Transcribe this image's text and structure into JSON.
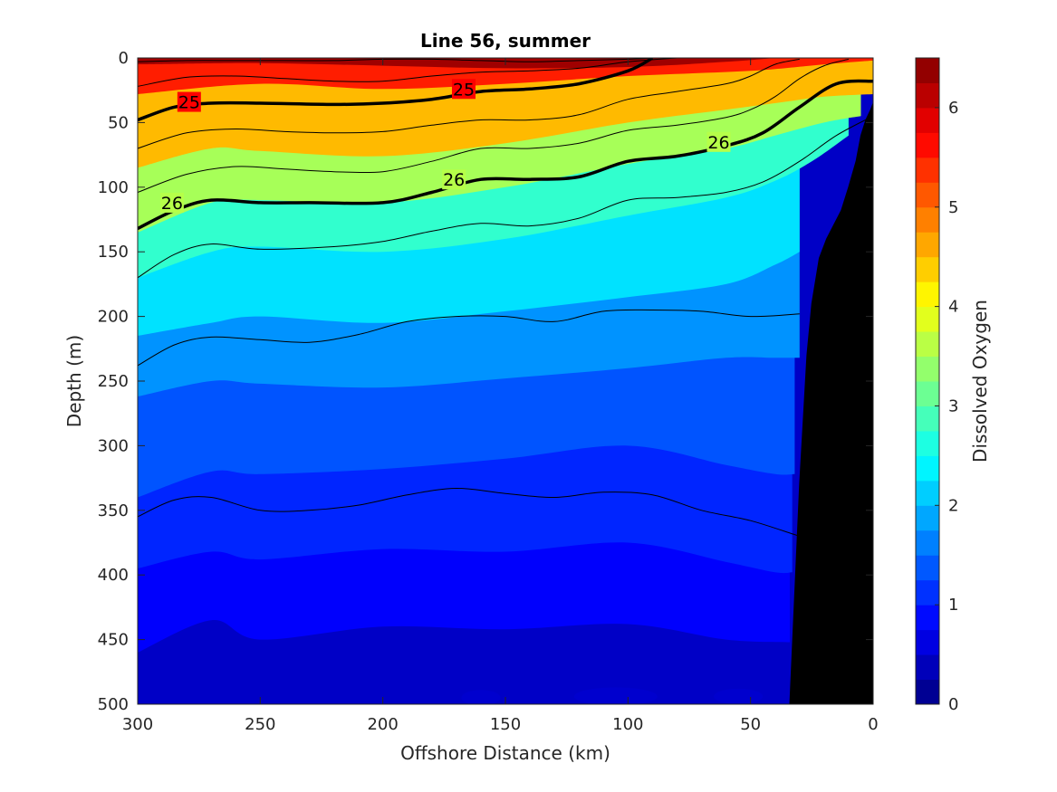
{
  "chart_data": {
    "type": "heatmap",
    "title": "Line 56, summer",
    "xlabel": "Offshore Distance (km)",
    "ylabel": "Depth (m)",
    "colorbar_label": "Dissolved Oxygen",
    "xlim": [
      300,
      0
    ],
    "ylim": [
      0,
      500
    ],
    "x_reversed": true,
    "y_reversed": true,
    "x_ticks": [
      "300",
      "250",
      "200",
      "150",
      "100",
      "50",
      "0"
    ],
    "y_ticks": [
      "0",
      "50",
      "100",
      "150",
      "200",
      "250",
      "300",
      "350",
      "400",
      "450",
      "500"
    ],
    "colorbar_range": [
      0,
      6.5
    ],
    "colorbar_ticks": [
      "0",
      "1",
      "2",
      "3",
      "4",
      "5",
      "6"
    ],
    "colormap": "jet",
    "color_levels": 26,
    "oxygen_isolines": [
      {
        "value": 6.0,
        "points": [
          [
            300,
            5
          ],
          [
            250,
            4
          ],
          [
            200,
            6
          ],
          [
            150,
            8
          ],
          [
            100,
            7
          ],
          [
            60,
            3
          ],
          [
            40,
            0
          ]
        ]
      },
      {
        "value": 5.0,
        "points": [
          [
            300,
            28
          ],
          [
            250,
            20
          ],
          [
            200,
            24
          ],
          [
            150,
            20
          ],
          [
            100,
            14
          ],
          [
            50,
            10
          ],
          [
            20,
            5
          ],
          [
            0,
            2
          ]
        ]
      },
      {
        "value": 4.0,
        "points": [
          [
            300,
            85
          ],
          [
            270,
            70
          ],
          [
            250,
            72
          ],
          [
            200,
            76
          ],
          [
            150,
            66
          ],
          [
            100,
            50
          ],
          [
            60,
            40
          ],
          [
            40,
            35
          ],
          [
            20,
            30
          ],
          [
            0,
            28
          ]
        ]
      },
      {
        "value": 3.0,
        "points": [
          [
            300,
            135
          ],
          [
            270,
            112
          ],
          [
            250,
            110
          ],
          [
            200,
            112
          ],
          [
            150,
            100
          ],
          [
            100,
            82
          ],
          [
            60,
            70
          ],
          [
            40,
            60
          ],
          [
            20,
            50
          ],
          [
            5,
            45
          ]
        ]
      },
      {
        "value": 2.5,
        "points": [
          [
            300,
            170
          ],
          [
            270,
            150
          ],
          [
            250,
            146
          ],
          [
            200,
            150
          ],
          [
            150,
            140
          ],
          [
            100,
            122
          ],
          [
            60,
            108
          ],
          [
            40,
            95
          ],
          [
            25,
            80
          ],
          [
            10,
            60
          ]
        ]
      },
      {
        "value": 2.0,
        "points": [
          [
            300,
            215
          ],
          [
            270,
            205
          ],
          [
            250,
            200
          ],
          [
            200,
            205
          ],
          [
            150,
            196
          ],
          [
            100,
            185
          ],
          [
            60,
            175
          ],
          [
            40,
            160
          ],
          [
            30,
            150
          ]
        ]
      },
      {
        "value": 1.5,
        "points": [
          [
            300,
            262
          ],
          [
            270,
            250
          ],
          [
            250,
            252
          ],
          [
            200,
            255
          ],
          [
            150,
            248
          ],
          [
            100,
            240
          ],
          [
            60,
            232
          ],
          [
            40,
            232
          ],
          [
            30,
            232
          ]
        ]
      },
      {
        "value": 1.2,
        "points": [
          [
            300,
            340
          ],
          [
            270,
            320
          ],
          [
            250,
            322
          ],
          [
            200,
            318
          ],
          [
            150,
            310
          ],
          [
            100,
            300
          ],
          [
            60,
            315
          ],
          [
            40,
            322
          ],
          [
            32,
            322
          ]
        ]
      },
      {
        "value": 0.9,
        "points": [
          [
            300,
            395
          ],
          [
            270,
            382
          ],
          [
            250,
            388
          ],
          [
            200,
            380
          ],
          [
            150,
            382
          ],
          [
            100,
            375
          ],
          [
            60,
            390
          ],
          [
            40,
            398
          ],
          [
            33,
            398
          ]
        ]
      },
      {
        "value": 0.7,
        "points": [
          [
            300,
            460
          ],
          [
            270,
            435
          ],
          [
            250,
            450
          ],
          [
            200,
            440
          ],
          [
            150,
            442
          ],
          [
            100,
            438
          ],
          [
            60,
            450
          ],
          [
            34,
            452
          ]
        ]
      }
    ],
    "density_contours": [
      {
        "value": "25",
        "labeled": true,
        "points": [
          [
            300,
            48
          ],
          [
            285,
            38
          ],
          [
            270,
            35
          ],
          [
            250,
            35
          ],
          [
            220,
            36
          ],
          [
            200,
            35
          ],
          [
            180,
            32
          ],
          [
            160,
            26
          ],
          [
            140,
            24
          ],
          [
            120,
            20
          ],
          [
            100,
            10
          ],
          [
            90,
            0
          ]
        ]
      },
      {
        "value": "26",
        "labeled": true,
        "points": [
          [
            300,
            132
          ],
          [
            285,
            118
          ],
          [
            270,
            110
          ],
          [
            250,
            112
          ],
          [
            230,
            112
          ],
          [
            200,
            112
          ],
          [
            180,
            104
          ],
          [
            160,
            94
          ],
          [
            140,
            94
          ],
          [
            120,
            92
          ],
          [
            100,
            80
          ],
          [
            80,
            76
          ],
          [
            60,
            68
          ],
          [
            45,
            58
          ],
          [
            30,
            38
          ],
          [
            15,
            20
          ],
          [
            0,
            18
          ]
        ]
      }
    ],
    "contour_labels": [
      {
        "text": "25",
        "x": 279,
        "y": 34
      },
      {
        "text": "25",
        "x": 167,
        "y": 24
      },
      {
        "text": "26",
        "x": 286,
        "y": 112
      },
      {
        "text": "26",
        "x": 171,
        "y": 94
      },
      {
        "text": "26",
        "x": 63,
        "y": 65
      }
    ],
    "thin_contours": [
      [
        [
          300,
          3
        ],
        [
          280,
          2
        ],
        [
          260,
          2
        ],
        [
          240,
          2
        ],
        [
          220,
          2
        ],
        [
          200,
          1
        ],
        [
          180,
          1
        ],
        [
          160,
          2
        ],
        [
          140,
          3
        ],
        [
          120,
          2
        ],
        [
          100,
          1
        ],
        [
          90,
          0
        ]
      ],
      [
        [
          300,
          22
        ],
        [
          280,
          15
        ],
        [
          260,
          14
        ],
        [
          240,
          16
        ],
        [
          220,
          18
        ],
        [
          200,
          18
        ],
        [
          180,
          14
        ],
        [
          160,
          11
        ],
        [
          140,
          10
        ],
        [
          120,
          8
        ],
        [
          100,
          3
        ],
        [
          80,
          0
        ]
      ],
      [
        [
          300,
          70
        ],
        [
          280,
          58
        ],
        [
          260,
          55
        ],
        [
          240,
          57
        ],
        [
          220,
          58
        ],
        [
          200,
          57
        ],
        [
          180,
          52
        ],
        [
          160,
          48
        ],
        [
          140,
          48
        ],
        [
          120,
          44
        ],
        [
          100,
          32
        ],
        [
          80,
          26
        ],
        [
          60,
          20
        ],
        [
          50,
          14
        ],
        [
          40,
          5
        ],
        [
          30,
          1
        ]
      ],
      [
        [
          300,
          104
        ],
        [
          280,
          90
        ],
        [
          260,
          84
        ],
        [
          240,
          86
        ],
        [
          220,
          88
        ],
        [
          200,
          88
        ],
        [
          180,
          80
        ],
        [
          160,
          70
        ],
        [
          140,
          70
        ],
        [
          120,
          66
        ],
        [
          100,
          56
        ],
        [
          80,
          52
        ],
        [
          60,
          46
        ],
        [
          50,
          40
        ],
        [
          40,
          30
        ],
        [
          30,
          16
        ],
        [
          20,
          6
        ],
        [
          10,
          1
        ]
      ],
      [
        [
          300,
          170
        ],
        [
          285,
          152
        ],
        [
          270,
          144
        ],
        [
          250,
          148
        ],
        [
          220,
          146
        ],
        [
          200,
          142
        ],
        [
          180,
          134
        ],
        [
          160,
          128
        ],
        [
          140,
          130
        ],
        [
          120,
          124
        ],
        [
          100,
          110
        ],
        [
          80,
          108
        ],
        [
          60,
          104
        ],
        [
          45,
          96
        ],
        [
          30,
          80
        ],
        [
          15,
          60
        ],
        [
          0,
          45
        ]
      ],
      [
        [
          300,
          238
        ],
        [
          285,
          222
        ],
        [
          270,
          216
        ],
        [
          250,
          218
        ],
        [
          230,
          220
        ],
        [
          210,
          214
        ],
        [
          190,
          204
        ],
        [
          170,
          200
        ],
        [
          150,
          200
        ],
        [
          130,
          204
        ],
        [
          110,
          196
        ],
        [
          90,
          195
        ],
        [
          70,
          196
        ],
        [
          50,
          200
        ],
        [
          30,
          198
        ]
      ],
      [
        [
          300,
          355
        ],
        [
          285,
          342
        ],
        [
          270,
          340
        ],
        [
          250,
          350
        ],
        [
          230,
          350
        ],
        [
          210,
          346
        ],
        [
          190,
          338
        ],
        [
          170,
          333
        ],
        [
          150,
          337
        ],
        [
          130,
          340
        ],
        [
          110,
          336
        ],
        [
          90,
          338
        ],
        [
          70,
          350
        ],
        [
          50,
          358
        ],
        [
          30,
          370
        ],
        [
          25,
          372
        ]
      ]
    ],
    "bottom_topography": [
      [
        34,
        500
      ],
      [
        30,
        330
      ],
      [
        27,
        230
      ],
      [
        25,
        190
      ],
      [
        22,
        155
      ],
      [
        19,
        140
      ],
      [
        13,
        118
      ],
      [
        10,
        100
      ],
      [
        7,
        80
      ],
      [
        5,
        60
      ],
      [
        3,
        48
      ],
      [
        1,
        40
      ],
      [
        0,
        35
      ],
      [
        0,
        500
      ]
    ],
    "bottom_pockets": [
      {
        "x": 160,
        "y": 495,
        "rx": 8,
        "ry": 6
      },
      {
        "x": 105,
        "y": 494,
        "rx": 17,
        "ry": 7
      },
      {
        "x": 55,
        "y": 494,
        "rx": 10,
        "ry": 6
      }
    ]
  }
}
